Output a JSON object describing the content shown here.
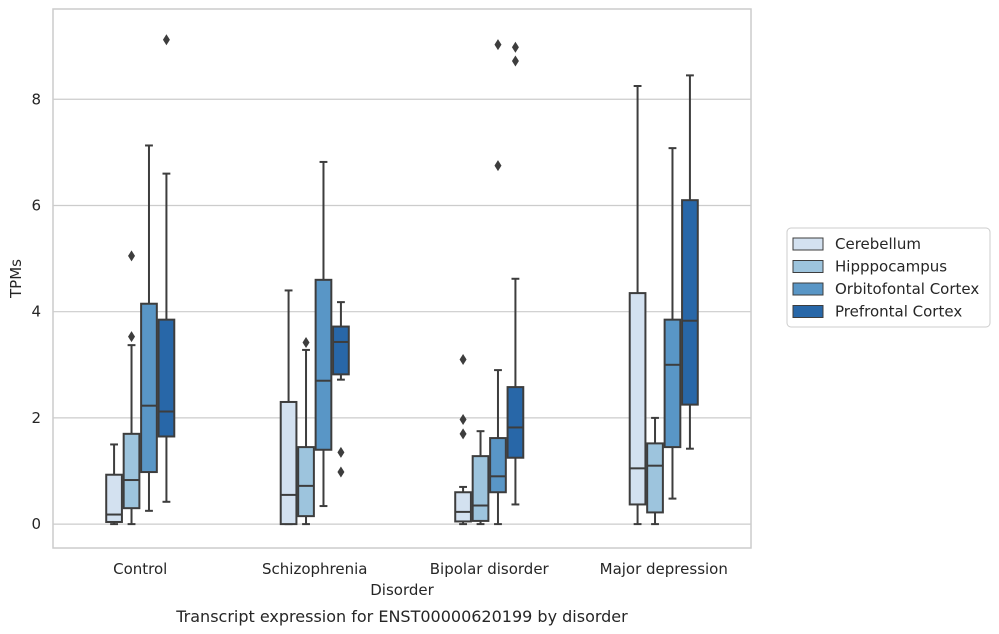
{
  "chart_data": {
    "type": "box",
    "title": "Transcript expression for ENST00000620199 by disorder",
    "xlabel": "Disorder",
    "ylabel": "TPMs",
    "ylim": [
      -0.45,
      9.7
    ],
    "yticks": [
      0,
      2,
      4,
      6,
      8
    ],
    "categories": [
      "Control",
      "Schizophrenia",
      "Bipolar disorder",
      "Major depression"
    ],
    "grid": true,
    "legend_position": "right",
    "series": [
      {
        "name": "Cerebellum",
        "color": "#d3e1f0",
        "boxes": [
          {
            "whislo": 0.0,
            "q1": 0.04,
            "med": 0.18,
            "q3": 0.93,
            "whishi": 1.5,
            "fliers": []
          },
          {
            "whislo": 0.0,
            "q1": 0.0,
            "med": 0.55,
            "q3": 2.3,
            "whishi": 4.4,
            "fliers": []
          },
          {
            "whislo": 0.0,
            "q1": 0.05,
            "med": 0.23,
            "q3": 0.6,
            "whishi": 0.7,
            "fliers": [
              1.7,
              1.97,
              3.1
            ]
          },
          {
            "whislo": 0.0,
            "q1": 0.37,
            "med": 1.05,
            "q3": 4.35,
            "whishi": 8.25,
            "fliers": []
          }
        ]
      },
      {
        "name": "Hipppocampus",
        "color": "#9dc4dd",
        "boxes": [
          {
            "whislo": 0.0,
            "q1": 0.3,
            "med": 0.83,
            "q3": 1.7,
            "whishi": 3.37,
            "fliers": [
              3.53,
              5.05
            ]
          },
          {
            "whislo": 0.0,
            "q1": 0.15,
            "med": 0.72,
            "q3": 1.45,
            "whishi": 3.28,
            "fliers": [
              3.42
            ]
          },
          {
            "whislo": 0.0,
            "q1": 0.06,
            "med": 0.35,
            "q3": 1.28,
            "whishi": 1.75,
            "fliers": []
          },
          {
            "whislo": 0.0,
            "q1": 0.22,
            "med": 1.1,
            "q3": 1.52,
            "whishi": 2.0,
            "fliers": []
          }
        ]
      },
      {
        "name": "Orbitofontal Cortex",
        "color": "#5996c6",
        "boxes": [
          {
            "whislo": 0.25,
            "q1": 0.98,
            "med": 2.23,
            "q3": 4.15,
            "whishi": 7.13,
            "fliers": []
          },
          {
            "whislo": 0.34,
            "q1": 1.4,
            "med": 2.7,
            "q3": 4.6,
            "whishi": 6.82,
            "fliers": []
          },
          {
            "whislo": 0.0,
            "q1": 0.6,
            "med": 0.9,
            "q3": 1.62,
            "whishi": 2.9,
            "fliers": [
              6.75,
              9.03
            ]
          },
          {
            "whislo": 0.48,
            "q1": 1.45,
            "med": 3.0,
            "q3": 3.85,
            "whishi": 7.08,
            "fliers": []
          }
        ]
      },
      {
        "name": "Prefrontal Cortex",
        "color": "#2867a8",
        "boxes": [
          {
            "whislo": 0.42,
            "q1": 1.65,
            "med": 2.12,
            "q3": 3.85,
            "whishi": 6.6,
            "fliers": [
              9.12
            ]
          },
          {
            "whislo": 2.72,
            "q1": 2.82,
            "med": 3.43,
            "q3": 3.72,
            "whishi": 4.18,
            "fliers": [
              0.98,
              1.35
            ]
          },
          {
            "whislo": 0.37,
            "q1": 1.25,
            "med": 1.82,
            "q3": 2.58,
            "whishi": 4.62,
            "fliers": [
              8.72,
              8.98
            ]
          },
          {
            "whislo": 1.42,
            "q1": 2.25,
            "med": 3.83,
            "q3": 6.1,
            "whishi": 8.45,
            "fliers": []
          }
        ]
      }
    ]
  }
}
